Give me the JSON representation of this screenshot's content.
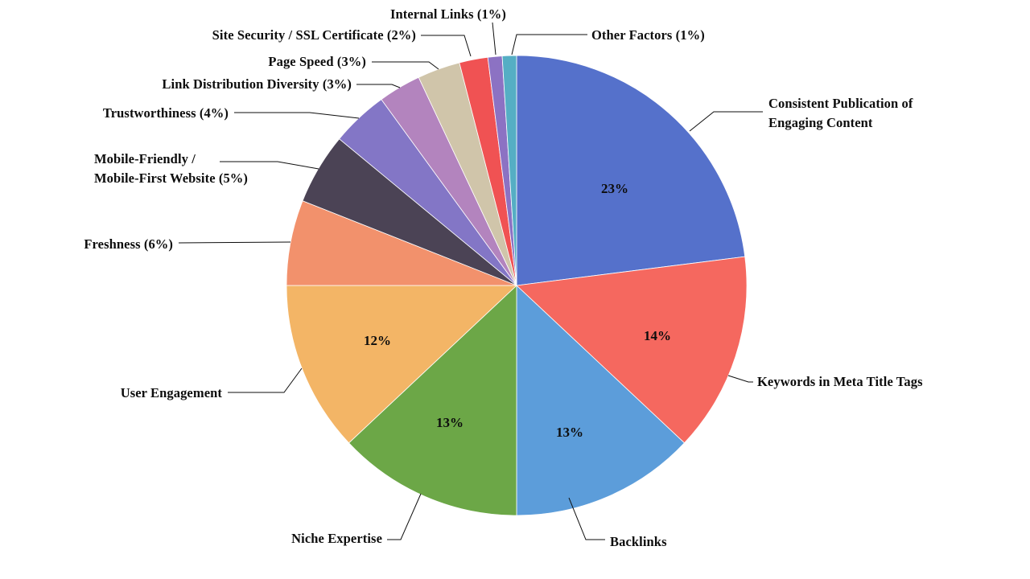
{
  "chart_data": {
    "type": "pie",
    "start_angle": "12-oclock",
    "direction": "clockwise",
    "total": 100,
    "background": "#ffffff",
    "legend": "none",
    "labels_position": "outside-callouts",
    "slices": [
      {
        "id": "consistent-publication-of-engaging-content",
        "label": "Consistent Publication of Engaging Content",
        "callout_lines": [
          "Consistent Publication of",
          "Engaging Content"
        ],
        "value": 23,
        "inside_label": "23%",
        "color": "#5571CB"
      },
      {
        "id": "keywords-in-meta-title-tags",
        "label": "Keywords in Meta Title Tags",
        "callout_lines": [
          "Keywords in Meta Title Tags"
        ],
        "value": 14,
        "inside_label": "14%",
        "color": "#F5685F"
      },
      {
        "id": "backlinks",
        "label": "Backlinks",
        "callout_lines": [
          "Backlinks"
        ],
        "value": 13,
        "inside_label": "13%",
        "color": "#5C9DDA"
      },
      {
        "id": "niche-expertise",
        "label": "Niche Expertise",
        "callout_lines": [
          "Niche Expertise"
        ],
        "value": 13,
        "inside_label": "13%",
        "color": "#6CA747"
      },
      {
        "id": "user-engagement",
        "label": "User Engagement",
        "callout_lines": [
          "User Engagement"
        ],
        "value": 12,
        "inside_label": "12%",
        "color": "#F3B566"
      },
      {
        "id": "freshness",
        "label": "Freshness (6%)",
        "callout_lines": [
          "Freshness (6%)"
        ],
        "value": 6,
        "inside_label": null,
        "color": "#F2916C"
      },
      {
        "id": "mobile-friendly-mobile-first-website",
        "label": "Mobile-Friendly / Mobile-First Website (5%)",
        "callout_lines": [
          "Mobile-Friendly /",
          "Mobile-First Website (5%)"
        ],
        "value": 5,
        "inside_label": null,
        "color": "#4B4355"
      },
      {
        "id": "trustworthiness",
        "label": "Trustworthiness (4%)",
        "callout_lines": [
          "Trustworthiness (4%)"
        ],
        "value": 4,
        "inside_label": null,
        "color": "#8376C6"
      },
      {
        "id": "link-distribution-diversity",
        "label": "Link Distribution Diversity (3%)",
        "callout_lines": [
          "Link Distribution Diversity (3%)"
        ],
        "value": 3,
        "inside_label": null,
        "color": "#B384BE"
      },
      {
        "id": "page-speed",
        "label": "Page Speed (3%)",
        "callout_lines": [
          "Page Speed (3%)"
        ],
        "value": 3,
        "inside_label": null,
        "color": "#D0C5AA"
      },
      {
        "id": "site-security-ssl-certificate",
        "label": "Site Security / SSL Certificate (2%)",
        "callout_lines": [
          "Site Security / SSL Certificate (2%)"
        ],
        "value": 2,
        "inside_label": null,
        "color": "#F05253"
      },
      {
        "id": "internal-links",
        "label": "Internal Links (1%)",
        "callout_lines": [
          "Internal Links (1%)"
        ],
        "value": 1,
        "inside_label": null,
        "color": "#8C72C3"
      },
      {
        "id": "other-factors",
        "label": "Other Factors (1%)",
        "callout_lines": [
          "Other Factors (1%)"
        ],
        "value": 1,
        "inside_label": null,
        "color": "#55AEC4"
      }
    ]
  },
  "styles": {
    "text_color": "#0d0d0d",
    "leader_line_color": "#0d0d0d",
    "slice_border_color": "#ffffff"
  }
}
